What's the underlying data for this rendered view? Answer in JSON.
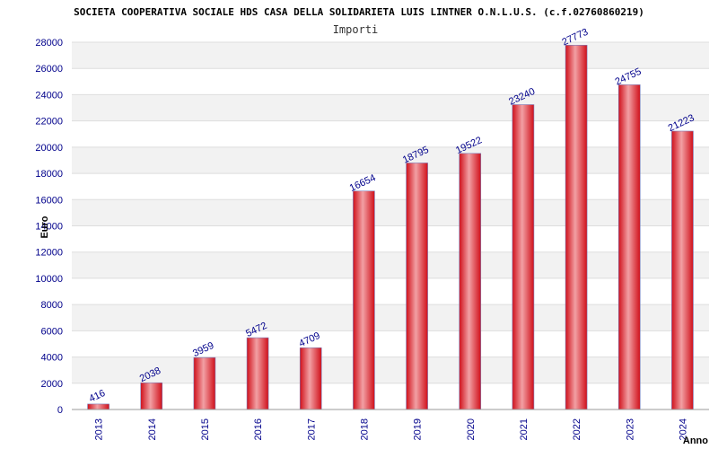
{
  "chart_data": {
    "type": "bar",
    "title": "SOCIETA COOPERATIVA SOCIALE HDS CASA DELLA SOLIDARIETA LUIS LINTNER O.N.L.U.S. (c.f.02760860219)",
    "subtitle": "Importi",
    "xlabel": "Anno",
    "ylabel": "Euro",
    "categories": [
      "2013",
      "2014",
      "2015",
      "2016",
      "2017",
      "2018",
      "2019",
      "2020",
      "2021",
      "2022",
      "2023",
      "2024"
    ],
    "values": [
      416,
      2038,
      3959,
      5472,
      4709,
      16654,
      18795,
      19522,
      23240,
      27773,
      24755,
      21223
    ],
    "ylim": [
      0,
      28000
    ],
    "yticks": [
      0,
      2000,
      4000,
      6000,
      8000,
      10000,
      12000,
      14000,
      16000,
      18000,
      20000,
      22000,
      24000,
      26000,
      28000
    ],
    "grid": true,
    "bar_color": "#e8202a"
  }
}
